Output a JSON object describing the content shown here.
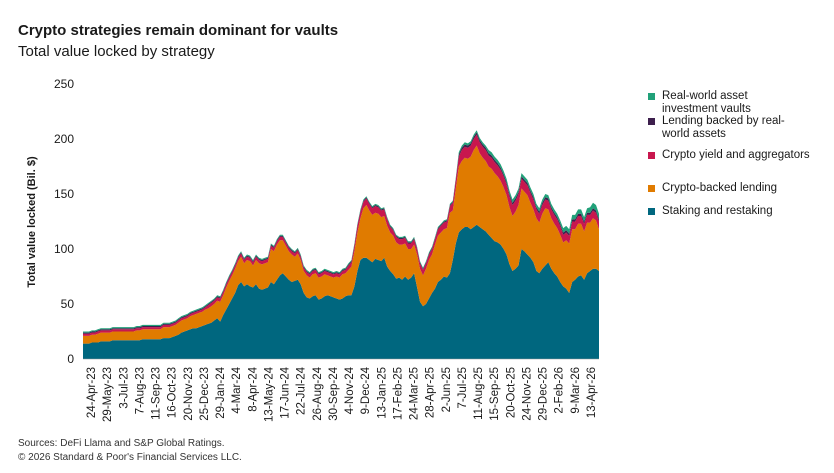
{
  "title": "Crypto strategies remain dominant for vaults",
  "subtitle": "Total value locked by strategy",
  "footer": {
    "sources": "Sources: DeFi Llama and S&P Global Ratings.",
    "copyright": "© 2026 Standard & Poor's Financial Services LLC."
  },
  "chart_data": {
    "type": "area",
    "stacked": true,
    "ylabel": "Total value locked (Bil. $)",
    "ylim": [
      0,
      250
    ],
    "yticks": [
      0,
      50,
      100,
      150,
      200,
      250
    ],
    "grid": false,
    "legend_position": "right",
    "xticks": [
      "24-Apr-23",
      "29-May-23",
      "3-Jul-23",
      "7-Aug-23",
      "11-Sep-23",
      "16-Oct-23",
      "20-Nov-23",
      "25-Dec-23",
      "29-Jan-24",
      "4-Mar-24",
      "8-Apr-24",
      "13-May-24",
      "17-Jun-24",
      "22-Jul-24",
      "26-Aug-24",
      "30-Sep-24",
      "4-Nov-24",
      "9-Dec-24",
      "13-Jan-25",
      "17-Feb-25",
      "24-Mar-25",
      "28-Apr-25",
      "2-Jun-25",
      "7-Jul-25",
      "11-Aug-25",
      "15-Sep-25",
      "20-Oct-25",
      "24-Nov-25",
      "29-Dec-25",
      "2-Feb-26",
      "9-Mar-26",
      "13-Apr-26"
    ],
    "x_points_per_tick": 5,
    "series": [
      {
        "name": "Staking and restaking",
        "color": "#00677f",
        "values": [
          14,
          14,
          14,
          15,
          15,
          15,
          16,
          16,
          16,
          16,
          17,
          17,
          17,
          17,
          17,
          17,
          17,
          17,
          17,
          17,
          18,
          18,
          18,
          18,
          18,
          18,
          18,
          19,
          19,
          19,
          20,
          21,
          22,
          24,
          25,
          26,
          27,
          28,
          28,
          29,
          30,
          31,
          32,
          33,
          35,
          37,
          34,
          40,
          45,
          50,
          55,
          60,
          67,
          70,
          66,
          68,
          66,
          65,
          68,
          64,
          63,
          64,
          65,
          70,
          68,
          72,
          76,
          78,
          75,
          72,
          70,
          71,
          72,
          68,
          60,
          56,
          55,
          57,
          58,
          54,
          55,
          57,
          58,
          57,
          56,
          55,
          54,
          55,
          57,
          58,
          58,
          66,
          80,
          90,
          92,
          92,
          90,
          88,
          91,
          90,
          89,
          92,
          84,
          80,
          77,
          73,
          74,
          72,
          75,
          72,
          74,
          78,
          65,
          52,
          48,
          50,
          55,
          60,
          64,
          70,
          72,
          75,
          74,
          78,
          90,
          105,
          115,
          118,
          120,
          120,
          118,
          120,
          122,
          120,
          118,
          116,
          113,
          110,
          107,
          106,
          104,
          100,
          95,
          86,
          80,
          82,
          85,
          100,
          98,
          95,
          92,
          88,
          80,
          78,
          82,
          85,
          88,
          82,
          78,
          75,
          70,
          66,
          64,
          60,
          70,
          72,
          75,
          76,
          72,
          78,
          80,
          82,
          82,
          80
        ]
      },
      {
        "name": "Crypto-backed lending",
        "color": "#e07b00",
        "values": [
          7,
          7,
          7,
          7,
          7,
          8,
          8,
          8,
          8,
          8,
          8,
          8,
          8,
          8,
          8,
          8,
          8,
          8,
          9,
          9,
          9,
          9,
          9,
          9,
          9,
          9,
          9,
          10,
          10,
          10,
          10,
          10,
          11,
          11,
          11,
          11,
          12,
          12,
          13,
          13,
          13,
          14,
          14,
          15,
          15,
          16,
          18,
          18,
          20,
          21,
          21,
          22,
          22,
          23,
          21,
          22,
          23,
          20,
          22,
          23,
          23,
          23,
          23,
          30,
          30,
          32,
          32,
          30,
          28,
          26,
          25,
          22,
          24,
          22,
          20,
          20,
          19,
          20,
          20,
          20,
          20,
          20,
          18,
          18,
          18,
          20,
          20,
          22,
          21,
          23,
          26,
          32,
          35,
          38,
          45,
          48,
          45,
          43,
          42,
          42,
          40,
          38,
          37,
          35,
          35,
          33,
          30,
          32,
          30,
          28,
          26,
          26,
          30,
          30,
          28,
          32,
          35,
          35,
          40,
          42,
          43,
          43,
          45,
          55,
          45,
          50,
          60,
          62,
          63,
          62,
          66,
          70,
          72,
          67,
          65,
          64,
          62,
          63,
          62,
          60,
          58,
          56,
          54,
          52,
          50,
          52,
          55,
          55,
          54,
          54,
          50,
          48,
          48,
          46,
          50,
          52,
          48,
          46,
          45,
          44,
          43,
          40,
          44,
          45,
          48,
          46,
          48,
          47,
          44,
          46,
          44,
          46,
          44,
          38
        ]
      },
      {
        "name": "Crypto yield and aggregators",
        "color": "#c8174e",
        "values": [
          2,
          2,
          2,
          2,
          2,
          2,
          2,
          2,
          2,
          2,
          2,
          2,
          2,
          2,
          2,
          2,
          2,
          2,
          2,
          2,
          2,
          2,
          2,
          2,
          2,
          2,
          2,
          2,
          2,
          2,
          2,
          2,
          2,
          2,
          2,
          2,
          2,
          2,
          2,
          2,
          2,
          2,
          3,
          3,
          3,
          3,
          3,
          3,
          3,
          3,
          3,
          3,
          3,
          3,
          3,
          3,
          3,
          3,
          3,
          3,
          3,
          3,
          3,
          3,
          3,
          3,
          3,
          3,
          3,
          3,
          3,
          3,
          3,
          3,
          3,
          3,
          3,
          3,
          3,
          3,
          3,
          3,
          3,
          3,
          3,
          3,
          3,
          3,
          3,
          4,
          4,
          5,
          6,
          6,
          6,
          6,
          6,
          6,
          6,
          6,
          6,
          6,
          6,
          5,
          5,
          5,
          5,
          5,
          5,
          5,
          5,
          5,
          5,
          5,
          5,
          5,
          5,
          5,
          5,
          6,
          6,
          6,
          6,
          6,
          7,
          8,
          9,
          10,
          10,
          10,
          10,
          10,
          10,
          10,
          10,
          10,
          10,
          10,
          10,
          10,
          10,
          10,
          10,
          10,
          10,
          10,
          10,
          9,
          9,
          9,
          9,
          9,
          8,
          8,
          8,
          8,
          8,
          8,
          8,
          8,
          8,
          7,
          7,
          7,
          7,
          7,
          7,
          7,
          7,
          7,
          7,
          7,
          7,
          7
        ]
      },
      {
        "name": "Lending backed by real-world assets",
        "color": "#3d1f4d",
        "values": [
          1,
          1,
          1,
          1,
          1,
          1,
          1,
          1,
          1,
          1,
          1,
          1,
          1,
          1,
          1,
          1,
          1,
          1,
          1,
          1,
          1,
          1,
          1,
          1,
          1,
          1,
          1,
          1,
          1,
          1,
          1,
          1,
          1,
          1,
          1,
          1,
          1,
          1,
          1,
          1,
          1,
          1,
          1,
          1,
          1,
          1,
          1,
          1,
          1,
          1,
          1,
          1,
          1,
          1,
          1,
          1,
          1,
          1,
          1,
          1,
          1,
          1,
          1,
          1,
          1,
          1,
          1,
          1,
          1,
          1,
          1,
          1,
          1,
          1,
          1,
          1,
          1,
          1,
          1,
          1,
          1,
          1,
          1,
          1,
          1,
          1,
          1,
          1,
          1,
          1,
          1,
          1,
          1,
          1,
          1,
          1,
          1,
          1,
          1,
          1,
          1,
          1,
          1,
          1,
          1,
          1,
          1,
          1,
          1,
          1,
          1,
          1,
          1,
          1,
          1,
          1,
          1,
          1,
          1,
          1,
          1,
          1,
          1,
          1,
          1,
          1,
          2,
          2,
          2,
          2,
          2,
          2,
          2,
          2,
          2,
          2,
          2,
          2,
          2,
          2,
          2,
          2,
          2,
          2,
          2,
          2,
          2,
          2,
          2,
          2,
          2,
          2,
          2,
          2,
          2,
          2,
          2,
          2,
          2,
          2,
          2,
          2,
          2,
          2,
          2,
          2,
          2,
          2,
          2,
          2,
          2,
          2,
          2,
          2
        ]
      },
      {
        "name": "Real-world asset investment vaults",
        "color": "#21a179",
        "values": [
          1,
          1,
          1,
          1,
          1,
          1,
          1,
          1,
          1,
          1,
          1,
          1,
          1,
          1,
          1,
          1,
          1,
          1,
          1,
          1,
          1,
          1,
          1,
          1,
          1,
          1,
          1,
          1,
          1,
          1,
          1,
          1,
          1,
          1,
          1,
          1,
          1,
          1,
          1,
          1,
          1,
          1,
          1,
          1,
          1,
          1,
          1,
          1,
          1,
          1,
          1,
          1,
          1,
          1,
          1,
          1,
          1,
          1,
          1,
          1,
          1,
          1,
          1,
          1,
          1,
          1,
          1,
          1,
          1,
          1,
          1,
          1,
          1,
          1,
          1,
          1,
          1,
          1,
          1,
          1,
          1,
          1,
          1,
          1,
          1,
          1,
          1,
          1,
          1,
          1,
          1,
          1,
          1,
          1,
          1,
          1,
          1,
          1,
          1,
          1,
          1,
          1,
          1,
          1,
          1,
          1,
          1,
          1,
          1,
          1,
          1,
          1,
          1,
          1,
          1,
          1,
          1,
          1,
          1,
          1,
          1,
          1,
          1,
          1,
          1,
          1,
          2,
          2,
          2,
          2,
          2,
          2,
          2,
          2,
          2,
          2,
          3,
          3,
          3,
          3,
          3,
          3,
          3,
          3,
          3,
          3,
          3,
          3,
          3,
          3,
          3,
          3,
          3,
          3,
          3,
          3,
          3,
          3,
          3,
          3,
          3,
          4,
          4,
          4,
          4,
          4,
          4,
          4,
          4,
          4,
          5,
          5,
          5,
          5
        ]
      }
    ]
  }
}
